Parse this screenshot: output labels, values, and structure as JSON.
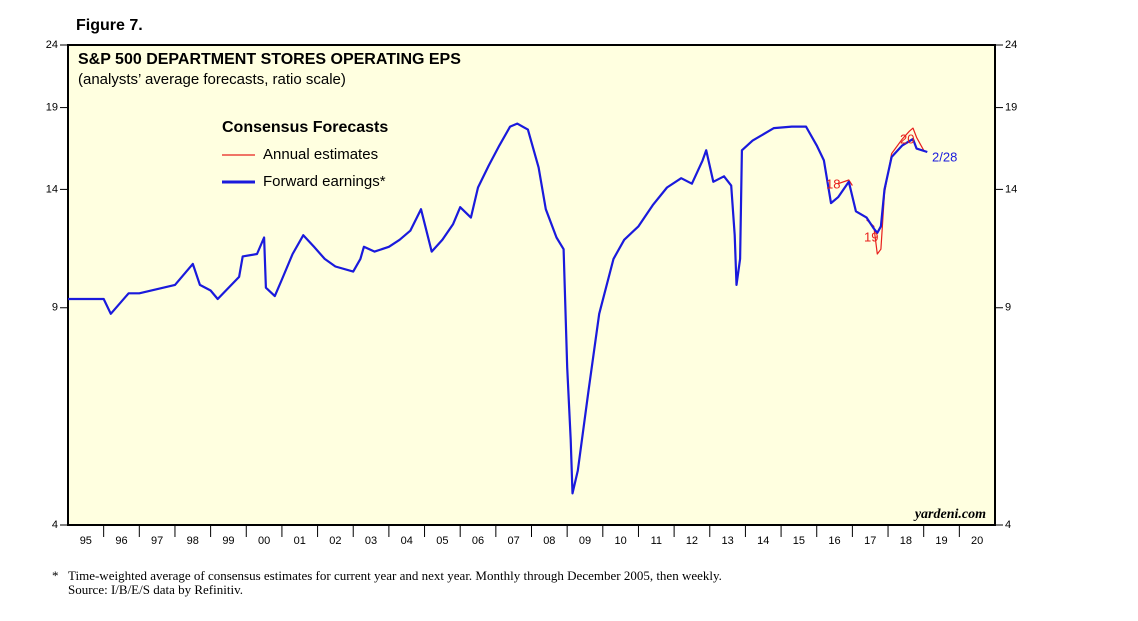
{
  "chart_data": {
    "type": "line",
    "figure_label": "Figure 7.",
    "title": "S&P 500 DEPARTMENT STORES OPERATING EPS",
    "subtitle": "(analysts’ average forecasts, ratio scale)",
    "legend_title": "Consensus Forecasts",
    "log_scale": true,
    "ylim": [
      4,
      24
    ],
    "yticks": [
      4,
      9,
      14,
      19,
      24
    ],
    "xlim": [
      1995,
      2021
    ],
    "xticks": [
      {
        "value": 1995.5,
        "label": "95"
      },
      {
        "value": 1996.5,
        "label": "96"
      },
      {
        "value": 1997.5,
        "label": "97"
      },
      {
        "value": 1998.5,
        "label": "98"
      },
      {
        "value": 1999.5,
        "label": "99"
      },
      {
        "value": 2000.5,
        "label": "00"
      },
      {
        "value": 2001.5,
        "label": "01"
      },
      {
        "value": 2002.5,
        "label": "02"
      },
      {
        "value": 2003.5,
        "label": "03"
      },
      {
        "value": 2004.5,
        "label": "04"
      },
      {
        "value": 2005.5,
        "label": "05"
      },
      {
        "value": 2006.5,
        "label": "06"
      },
      {
        "value": 2007.5,
        "label": "07"
      },
      {
        "value": 2008.5,
        "label": "08"
      },
      {
        "value": 2009.5,
        "label": "09"
      },
      {
        "value": 2010.5,
        "label": "10"
      },
      {
        "value": 2011.5,
        "label": "11"
      },
      {
        "value": 2012.5,
        "label": "12"
      },
      {
        "value": 2013.5,
        "label": "13"
      },
      {
        "value": 2014.5,
        "label": "14"
      },
      {
        "value": 2015.5,
        "label": "15"
      },
      {
        "value": 2016.5,
        "label": "16"
      },
      {
        "value": 2017.5,
        "label": "17"
      },
      {
        "value": 2018.5,
        "label": "18"
      },
      {
        "value": 2019.5,
        "label": "19"
      },
      {
        "value": 2020.5,
        "label": "20"
      }
    ],
    "series": [
      {
        "name": "Annual estimates",
        "color": "#e8201c",
        "x": [
          2016.6,
          2016.9,
          2017.0,
          2017.2,
          2017.4,
          2017.6,
          2017.7,
          2017.8,
          2017.9,
          2018.1,
          2018.4,
          2018.6,
          2018.7,
          2018.8,
          2018.9,
          2019.0
        ],
        "values": [
          14.3,
          14.5,
          14.2,
          null,
          12.5,
          12.2,
          11.0,
          11.2,
          13.8,
          16.0,
          16.9,
          17.4,
          17.6,
          17.0,
          16.6,
          16.2
        ]
      },
      {
        "name": "Forward earnings*",
        "color": "#1a1adc",
        "x": [
          1995.0,
          1995.5,
          1996.0,
          1996.2,
          1996.7,
          1997.0,
          1998.0,
          1998.5,
          1998.7,
          1999.0,
          1999.2,
          1999.8,
          1999.9,
          2000.3,
          2000.5,
          2000.55,
          2000.8,
          2001.0,
          2001.3,
          2001.6,
          2001.9,
          2002.2,
          2002.5,
          2003.0,
          2003.2,
          2003.3,
          2003.6,
          2004.0,
          2004.3,
          2004.6,
          2004.9,
          2005.2,
          2005.5,
          2005.8,
          2006.0,
          2006.3,
          2006.5,
          2006.8,
          2007.1,
          2007.4,
          2007.6,
          2007.9,
          2008.2,
          2008.4,
          2008.7,
          2008.9,
          2009.0,
          2009.1,
          2009.15,
          2009.3,
          2009.6,
          2009.9,
          2010.3,
          2010.6,
          2011.0,
          2011.4,
          2011.8,
          2012.2,
          2012.5,
          2012.8,
          2012.9,
          2013.1,
          2013.4,
          2013.6,
          2013.7,
          2013.75,
          2013.85,
          2013.9,
          2014.2,
          2014.8,
          2015.3,
          2015.7,
          2016.0,
          2016.2,
          2016.4,
          2016.6,
          2016.9,
          2017.1,
          2017.4,
          2017.6,
          2017.7,
          2017.8,
          2017.9,
          2018.1,
          2018.4,
          2018.7,
          2018.8,
          2019.1
        ],
        "values": [
          9.3,
          9.3,
          9.3,
          8.8,
          9.5,
          9.5,
          9.8,
          10.6,
          9.8,
          9.6,
          9.3,
          10.1,
          10.9,
          11.0,
          11.7,
          9.7,
          9.4,
          10.0,
          11.0,
          11.8,
          11.3,
          10.8,
          10.5,
          10.3,
          10.8,
          11.3,
          11.1,
          11.3,
          11.6,
          12.0,
          13.0,
          11.1,
          11.6,
          12.3,
          13.1,
          12.6,
          14.1,
          15.3,
          16.5,
          17.7,
          17.9,
          17.5,
          15.2,
          13.0,
          11.7,
          11.2,
          7.2,
          5.5,
          4.5,
          4.9,
          6.6,
          8.8,
          10.8,
          11.6,
          12.2,
          13.2,
          14.1,
          14.6,
          14.3,
          15.6,
          16.2,
          14.4,
          14.7,
          14.2,
          11.8,
          9.8,
          10.8,
          16.2,
          16.8,
          17.6,
          17.7,
          17.7,
          16.5,
          15.6,
          13.3,
          13.6,
          14.4,
          12.9,
          12.6,
          12.1,
          11.9,
          12.2,
          14.0,
          15.8,
          16.5,
          16.9,
          16.3,
          16.1
        ]
      }
    ],
    "annotations": [
      "18",
      "19",
      "20",
      "2/28"
    ],
    "source_credit": "yardeni.com",
    "footnote_marker": "*",
    "footnote": "Time-weighted average of consensus estimates for current year and next year. Monthly through December 2005, then weekly.",
    "source": "Source: I/B/E/S data by Refinitiv."
  }
}
